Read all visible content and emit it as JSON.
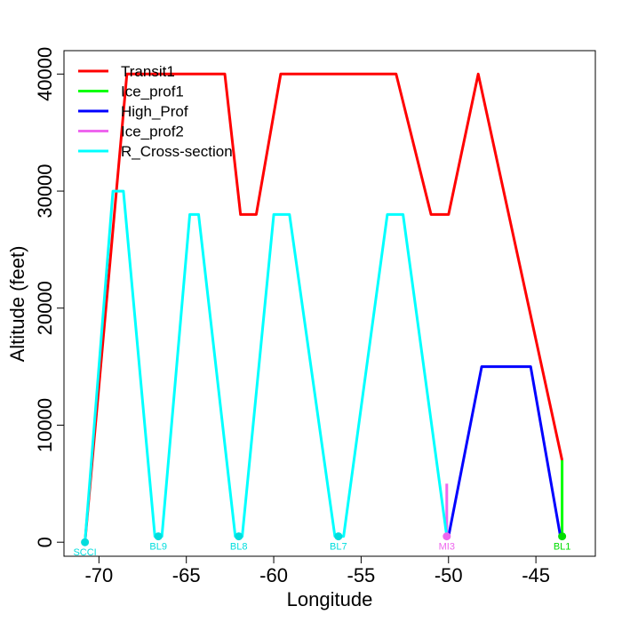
{
  "chart_data": {
    "type": "line",
    "title": "",
    "xlabel": "Longitude",
    "ylabel": "Altitude (feet)",
    "xlim": [
      -72.0,
      -41.6
    ],
    "ylim": [
      -1200,
      42000
    ],
    "xticks": [
      -70,
      -65,
      -60,
      -55,
      -50,
      -45
    ],
    "xtick_labels": [
      "-70",
      "-65",
      "-60",
      "-55",
      "-50",
      "-45"
    ],
    "yticks": [
      0,
      10000,
      20000,
      30000,
      40000
    ],
    "ytick_labels": [
      "0",
      "10000",
      "20000",
      "30000",
      "40000"
    ],
    "grid": false,
    "legend_position": "top-left",
    "series": [
      {
        "name": "Transit1",
        "color": "#ff0000",
        "x": [
          -70.8,
          -68.4,
          -67.0,
          -62.8,
          -61.9,
          -61.0,
          -59.6,
          -53.0,
          -51.0,
          -50.0,
          -48.3,
          -43.5
        ],
        "y": [
          0,
          40000,
          40000,
          40000,
          28000,
          28000,
          40000,
          40000,
          28000,
          28000,
          40000,
          7000
        ]
      },
      {
        "name": "Ice_prof1",
        "color": "#00ff00",
        "x": [
          -43.5,
          -43.5
        ],
        "y": [
          500,
          7000
        ]
      },
      {
        "name": "High_Prof",
        "color": "#0000ff",
        "x": [
          -50.0,
          -48.1,
          -45.3,
          -43.6
        ],
        "y": [
          500,
          15000,
          15000,
          500
        ]
      },
      {
        "name": "Ice_prof2",
        "color": "#ee66ee",
        "x": [
          -50.1,
          -50.1
        ],
        "y": [
          500,
          5000
        ]
      },
      {
        "name": "R_Cross-section",
        "color": "#00ffff",
        "x": [
          -70.8,
          -69.2,
          -68.6,
          -66.8,
          -66.4,
          -64.8,
          -64.3,
          -62.2,
          -61.8,
          -60.0,
          -59.1,
          -56.5,
          -56.0,
          -53.5,
          -52.6,
          -50.1
        ],
        "y": [
          0,
          30000,
          30000,
          500,
          500,
          28000,
          28000,
          500,
          500,
          28000,
          28000,
          500,
          500,
          28000,
          28000,
          500
        ]
      }
    ],
    "waypoints": [
      {
        "label": "SCCI",
        "x": -70.8,
        "y": 0,
        "color": "#00dddd"
      },
      {
        "label": "BL9",
        "x": -66.6,
        "y": 500,
        "color": "#00dddd"
      },
      {
        "label": "BL8",
        "x": -62.0,
        "y": 500,
        "color": "#00dddd"
      },
      {
        "label": "BL7",
        "x": -56.3,
        "y": 500,
        "color": "#00dddd"
      },
      {
        "label": "MI3",
        "x": -50.1,
        "y": 500,
        "color": "#ee66ee"
      },
      {
        "label": "BL1",
        "x": -43.5,
        "y": 500,
        "color": "#00dd00"
      }
    ]
  }
}
